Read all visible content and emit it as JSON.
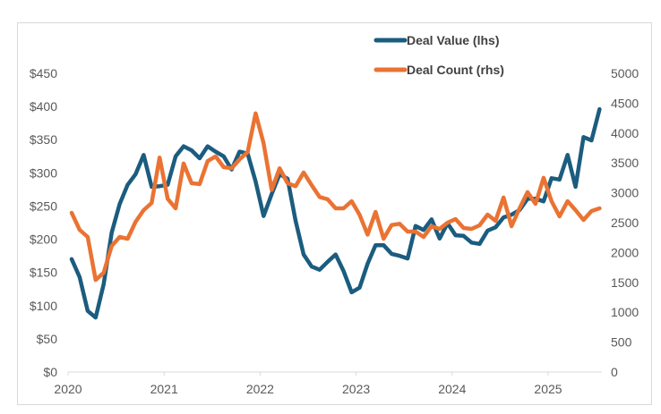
{
  "chart_data": {
    "type": "line",
    "title": "",
    "xlabel": "",
    "ylabel": "",
    "y2label": "",
    "x_start": "2020-01",
    "x_frequency": "monthly",
    "x_tick_labels": [
      "2020",
      "2021",
      "2022",
      "2023",
      "2024",
      "2025"
    ],
    "ylim": [
      0,
      450
    ],
    "y_ticks": [
      0,
      50,
      100,
      150,
      200,
      250,
      300,
      350,
      400,
      450
    ],
    "y_tick_labels": [
      "$0",
      "$50",
      "$100",
      "$150",
      "$200",
      "$250",
      "$300",
      "$350",
      "$400",
      "$450"
    ],
    "y2lim": [
      0,
      5000
    ],
    "y2_ticks": [
      0,
      500,
      1000,
      1500,
      2000,
      2500,
      3000,
      3500,
      4000,
      4500,
      5000
    ],
    "y2_tick_labels": [
      "0",
      "500",
      "1000",
      "1500",
      "2000",
      "2500",
      "3000",
      "3500",
      "4000",
      "4500",
      "5000"
    ],
    "grid": false,
    "legend_position": "top-right",
    "series": [
      {
        "name": "Deal Value (lhs)",
        "axis": "left",
        "color": "#1b5c7f",
        "values": [
          170,
          143,
          92,
          82,
          132,
          210,
          253,
          282,
          298,
          327,
          279,
          280,
          282,
          325,
          340,
          334,
          322,
          340,
          332,
          325,
          305,
          332,
          329,
          287,
          235,
          268,
          298,
          291,
          228,
          177,
          159,
          154,
          166,
          177,
          152,
          120,
          127,
          163,
          191,
          191,
          178,
          175,
          171,
          220,
          214,
          230,
          201,
          224,
          206,
          205,
          195,
          193,
          213,
          218,
          233,
          237,
          244,
          261,
          261,
          257,
          292,
          290,
          327,
          279,
          354,
          349,
          396
        ]
      },
      {
        "name": "Deal Count (rhs)",
        "axis": "right",
        "color": "#ea7333",
        "values": [
          2665,
          2380,
          2260,
          1540,
          1660,
          2110,
          2260,
          2230,
          2515,
          2710,
          2830,
          3590,
          2900,
          2740,
          3490,
          3160,
          3145,
          3530,
          3610,
          3430,
          3410,
          3560,
          3680,
          4330,
          3830,
          3050,
          3410,
          3160,
          3110,
          3340,
          3130,
          2930,
          2890,
          2740,
          2740,
          2860,
          2630,
          2300,
          2680,
          2230,
          2460,
          2480,
          2350,
          2350,
          2260,
          2440,
          2395,
          2500,
          2560,
          2410,
          2395,
          2455,
          2635,
          2530,
          2920,
          2440,
          2740,
          3010,
          2815,
          3250,
          2860,
          2605,
          2860,
          2710,
          2545,
          2695,
          2740
        ]
      }
    ]
  },
  "colors": {
    "axis_line": "#d9d9d9",
    "tick_text": "#595959",
    "legend_text": "#404040",
    "frame": "#d9d9d9"
  }
}
